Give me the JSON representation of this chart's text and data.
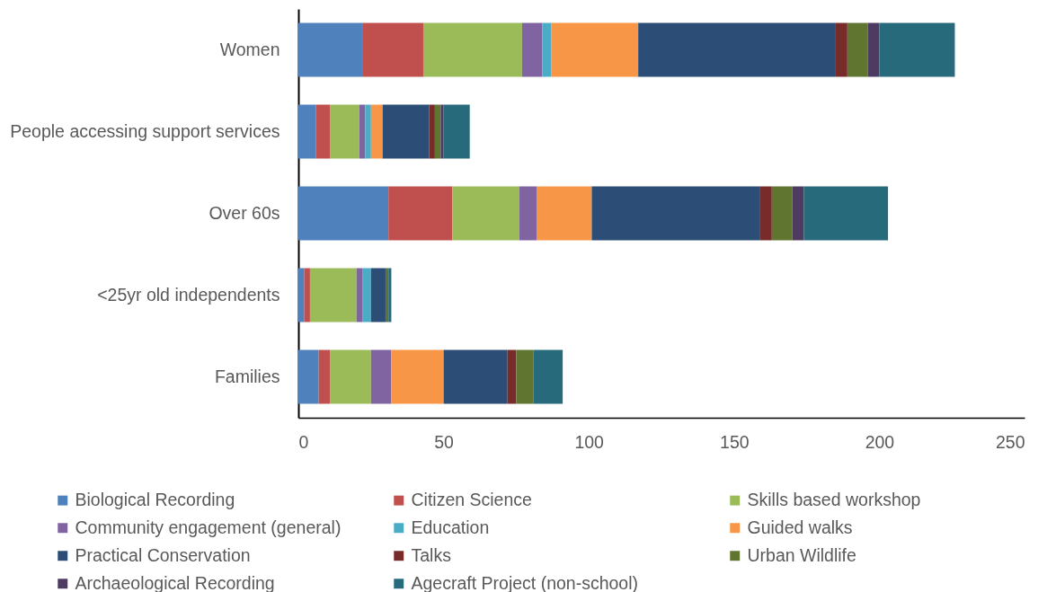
{
  "chart_data": {
    "type": "bar",
    "orientation": "horizontal",
    "stacked": true,
    "categories": [
      "Women",
      "People accessing support services",
      "Over 60s",
      "<25yr old independents",
      "Families"
    ],
    "xlim": [
      0,
      250
    ],
    "xticks": [
      0,
      50,
      100,
      150,
      200,
      250
    ],
    "legend": "bottom",
    "series": [
      {
        "name": "Biological Recording",
        "color": "#4f81bd",
        "values": [
          22,
          6,
          31,
          2,
          7
        ]
      },
      {
        "name": "Citizen Science",
        "color": "#c0504d",
        "values": [
          21,
          5,
          22,
          2,
          4
        ]
      },
      {
        "name": "Skills based workshop",
        "color": "#9bbb59",
        "values": [
          34,
          10,
          23,
          16,
          14
        ]
      },
      {
        "name": "Community engagement (general)",
        "color": "#8064a2",
        "values": [
          7,
          2,
          6,
          2,
          7
        ]
      },
      {
        "name": "Education",
        "color": "#4bacc6",
        "values": [
          3,
          2,
          0,
          3,
          0
        ]
      },
      {
        "name": "Guided walks",
        "color": "#f79646",
        "values": [
          30,
          4,
          19,
          0,
          18
        ]
      },
      {
        "name": "Practical Conservation",
        "color": "#2c4d75",
        "values": [
          68,
          16,
          58,
          5,
          22
        ]
      },
      {
        "name": "Talks",
        "color": "#772c2a",
        "values": [
          4,
          2,
          4,
          0,
          3
        ]
      },
      {
        "name": "Urban Wildlife",
        "color": "#5f7530",
        "values": [
          7,
          2,
          7,
          1,
          6
        ]
      },
      {
        "name": "Archaeological Recording",
        "color": "#4d3b62",
        "values": [
          4,
          1,
          4,
          0,
          0
        ]
      },
      {
        "name": "Agecraft Project (non-school)",
        "color": "#276a7c",
        "values": [
          26,
          9,
          29,
          1,
          10
        ]
      }
    ]
  }
}
